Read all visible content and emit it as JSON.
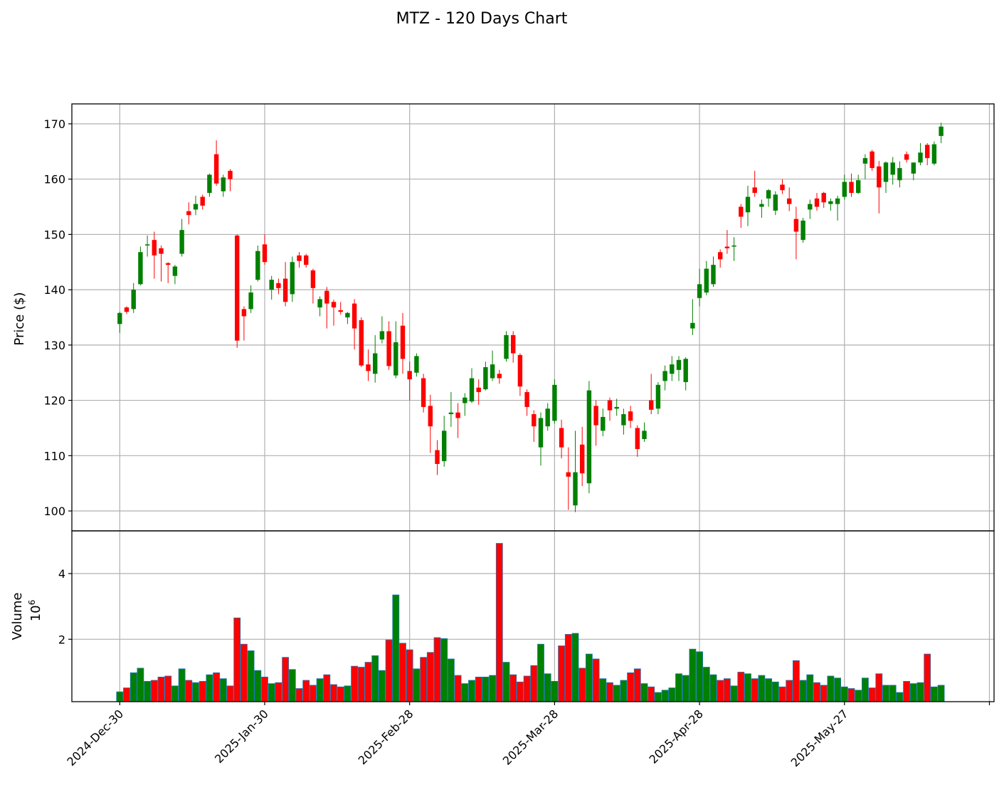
{
  "chart_data": {
    "type": "candlestick",
    "title": "MTZ - 120 Days Chart",
    "price_panel": {
      "ylabel": "Price ($)",
      "yticks": [
        100,
        110,
        120,
        130,
        140,
        150,
        160,
        170
      ],
      "ylim": [
        96.4,
        173.6
      ],
      "grid": true
    },
    "volume_panel": {
      "ylabel": "Volume",
      "scale_label": "10^6",
      "yticks": [
        2,
        4
      ],
      "ylim": [
        0.1,
        5.3
      ],
      "unit": "millions",
      "grid": true
    },
    "x_ticks": [
      {
        "index": 0,
        "label": "2024-Dec-30"
      },
      {
        "index": 21,
        "label": "2025-Jan-30"
      },
      {
        "index": 42,
        "label": "2025-Feb-28"
      },
      {
        "index": 63,
        "label": "2025-Mar-28"
      },
      {
        "index": 84,
        "label": "2025-Apr-28"
      },
      {
        "index": 105,
        "label": "2025-May-27"
      }
    ],
    "up_color": "#008000",
    "down_color": "#ff0000",
    "volume_edge_color": "#1f77b4",
    "candles": [
      [
        133.8,
        136.0,
        132.2,
        135.8,
        0.4
      ],
      [
        136.8,
        137.0,
        135.6,
        136.0,
        0.52
      ],
      [
        136.5,
        141.2,
        135.8,
        140.0,
        0.98
      ],
      [
        141.0,
        147.8,
        140.8,
        146.8,
        1.12
      ],
      [
        148.0,
        149.8,
        146.0,
        148.2,
        0.72
      ],
      [
        149.0,
        150.5,
        142.0,
        146.2,
        0.75
      ],
      [
        147.5,
        148.0,
        141.5,
        146.5,
        0.85
      ],
      [
        144.8,
        145.0,
        141.2,
        144.5,
        0.88
      ],
      [
        142.5,
        144.5,
        141.0,
        144.2,
        0.58
      ],
      [
        146.5,
        152.8,
        146.0,
        150.8,
        1.1
      ],
      [
        154.2,
        155.8,
        151.8,
        153.5,
        0.75
      ],
      [
        154.5,
        157.0,
        153.5,
        155.5,
        0.68
      ],
      [
        156.8,
        157.2,
        154.5,
        155.2,
        0.72
      ],
      [
        157.5,
        161.0,
        156.8,
        160.8,
        0.92
      ],
      [
        164.5,
        167.0,
        158.8,
        159.2,
        0.98
      ],
      [
        157.8,
        160.8,
        156.8,
        160.3,
        0.8
      ],
      [
        161.5,
        161.8,
        157.8,
        160.0,
        0.58
      ],
      [
        149.8,
        150.0,
        129.5,
        130.8,
        2.65
      ],
      [
        136.5,
        137.0,
        130.8,
        135.2,
        1.85
      ],
      [
        136.5,
        140.8,
        135.8,
        139.5,
        1.65
      ],
      [
        141.8,
        148.0,
        141.5,
        147.0,
        1.05
      ],
      [
        148.2,
        150.0,
        144.5,
        145.0,
        0.85
      ],
      [
        140.0,
        142.5,
        138.2,
        141.8,
        0.65
      ],
      [
        141.2,
        142.0,
        139.2,
        140.3,
        0.68
      ],
      [
        142.0,
        145.0,
        137.0,
        137.8,
        1.45
      ],
      [
        139.2,
        146.0,
        137.8,
        145.0,
        1.08
      ],
      [
        146.2,
        146.8,
        144.0,
        145.2,
        0.5
      ],
      [
        146.2,
        146.5,
        144.0,
        144.5,
        0.75
      ],
      [
        143.5,
        143.8,
        137.5,
        140.3,
        0.6
      ],
      [
        136.8,
        138.8,
        135.2,
        138.3,
        0.8
      ],
      [
        139.8,
        140.5,
        133.0,
        137.5,
        0.92
      ],
      [
        137.8,
        138.2,
        133.5,
        136.8,
        0.62
      ],
      [
        136.3,
        137.8,
        135.5,
        136.0,
        0.55
      ],
      [
        135.0,
        136.0,
        133.8,
        135.8,
        0.58
      ],
      [
        137.5,
        138.3,
        129.2,
        133.0,
        1.18
      ],
      [
        134.5,
        135.0,
        126.0,
        126.3,
        1.15
      ],
      [
        126.5,
        129.2,
        123.5,
        125.3,
        1.3
      ],
      [
        124.8,
        131.8,
        123.2,
        128.5,
        1.5
      ],
      [
        131.0,
        135.2,
        130.3,
        132.5,
        1.05
      ],
      [
        132.5,
        134.3,
        125.5,
        126.2,
        1.98
      ],
      [
        124.5,
        134.3,
        124.0,
        130.5,
        3.35
      ],
      [
        133.5,
        135.8,
        124.8,
        127.5,
        1.88
      ],
      [
        125.3,
        127.0,
        120.0,
        123.8,
        1.68
      ],
      [
        125.0,
        128.5,
        124.3,
        128.0,
        1.1
      ],
      [
        124.0,
        124.8,
        117.8,
        118.8,
        1.45
      ],
      [
        119.0,
        121.0,
        110.5,
        115.3,
        1.6
      ],
      [
        111.0,
        112.8,
        106.5,
        108.5,
        2.05
      ],
      [
        109.0,
        117.2,
        108.0,
        114.5,
        2.02
      ],
      [
        117.5,
        121.5,
        115.2,
        117.8,
        1.4
      ],
      [
        117.8,
        119.5,
        113.2,
        116.8,
        0.9
      ],
      [
        119.5,
        121.3,
        117.2,
        120.5,
        0.65
      ],
      [
        119.8,
        125.8,
        119.5,
        124.0,
        0.75
      ],
      [
        122.3,
        123.8,
        119.2,
        121.5,
        0.85
      ],
      [
        122.0,
        127.0,
        121.8,
        126.0,
        0.85
      ],
      [
        124.0,
        129.0,
        123.5,
        126.5,
        0.9
      ],
      [
        124.8,
        125.5,
        123.0,
        124.0,
        4.92
      ],
      [
        127.5,
        132.5,
        127.0,
        131.8,
        1.3
      ],
      [
        131.8,
        132.5,
        126.8,
        128.5,
        0.92
      ],
      [
        128.2,
        128.5,
        120.8,
        122.5,
        0.7
      ],
      [
        121.5,
        122.0,
        117.2,
        118.8,
        0.88
      ],
      [
        117.5,
        118.2,
        112.5,
        115.3,
        1.2
      ],
      [
        111.5,
        117.8,
        108.2,
        116.8,
        1.85
      ],
      [
        115.3,
        119.5,
        114.5,
        118.5,
        0.95
      ],
      [
        116.3,
        123.8,
        115.8,
        122.8,
        0.72
      ],
      [
        115.0,
        116.5,
        109.5,
        111.5,
        1.8
      ],
      [
        107.0,
        111.5,
        100.2,
        106.2,
        2.15
      ],
      [
        101.0,
        114.5,
        99.8,
        107.0,
        2.18
      ],
      [
        112.0,
        115.2,
        104.5,
        106.8,
        1.12
      ],
      [
        105.0,
        123.5,
        103.2,
        121.8,
        1.55
      ],
      [
        119.0,
        120.0,
        111.8,
        115.5,
        1.4
      ],
      [
        114.5,
        118.5,
        113.5,
        117.0,
        0.8
      ],
      [
        120.0,
        120.5,
        116.3,
        118.2,
        0.68
      ],
      [
        118.5,
        120.3,
        117.2,
        118.8,
        0.6
      ],
      [
        115.5,
        118.5,
        113.8,
        117.5,
        0.75
      ],
      [
        118.0,
        119.0,
        115.0,
        116.3,
        0.98
      ],
      [
        115.0,
        115.5,
        109.8,
        111.2,
        1.1
      ],
      [
        113.0,
        116.0,
        112.5,
        114.5,
        0.65
      ],
      [
        120.0,
        124.8,
        117.5,
        118.3,
        0.55
      ],
      [
        118.5,
        123.3,
        117.5,
        122.8,
        0.38
      ],
      [
        123.5,
        126.3,
        121.8,
        125.3,
        0.45
      ],
      [
        124.8,
        128.0,
        123.5,
        126.5,
        0.52
      ],
      [
        125.5,
        128.0,
        123.5,
        127.3,
        0.95
      ],
      [
        123.3,
        127.8,
        121.8,
        127.5,
        0.9
      ],
      [
        133.0,
        138.3,
        131.8,
        134.0,
        1.7
      ],
      [
        138.5,
        143.8,
        137.0,
        141.0,
        1.62
      ],
      [
        139.5,
        145.2,
        139.0,
        143.8,
        1.15
      ],
      [
        141.0,
        146.0,
        140.5,
        144.5,
        0.92
      ],
      [
        146.8,
        147.3,
        144.0,
        145.5,
        0.75
      ],
      [
        147.8,
        150.8,
        146.5,
        147.5,
        0.8
      ],
      [
        147.8,
        149.5,
        145.2,
        148.0,
        0.58
      ],
      [
        155.0,
        155.5,
        151.2,
        153.2,
        1.0
      ],
      [
        154.0,
        158.8,
        151.5,
        156.8,
        0.95
      ],
      [
        158.5,
        161.5,
        156.8,
        157.5,
        0.8
      ],
      [
        155.0,
        156.3,
        153.0,
        155.5,
        0.9
      ],
      [
        156.5,
        158.2,
        155.0,
        158.0,
        0.8
      ],
      [
        154.3,
        157.8,
        153.5,
        157.2,
        0.7
      ],
      [
        159.0,
        160.0,
        157.3,
        158.0,
        0.55
      ],
      [
        156.5,
        158.5,
        154.2,
        155.5,
        0.75
      ],
      [
        152.8,
        155.0,
        145.5,
        150.5,
        1.35
      ],
      [
        149.0,
        153.0,
        148.5,
        152.5,
        0.75
      ],
      [
        154.5,
        156.3,
        152.8,
        155.5,
        0.92
      ],
      [
        156.5,
        157.5,
        154.3,
        155.0,
        0.68
      ],
      [
        157.5,
        157.7,
        154.8,
        155.8,
        0.6
      ],
      [
        155.5,
        156.5,
        154.3,
        156.0,
        0.88
      ],
      [
        155.5,
        157.0,
        152.5,
        156.5,
        0.82
      ],
      [
        156.8,
        160.8,
        156.3,
        159.5,
        0.55
      ],
      [
        159.5,
        161.0,
        156.8,
        157.5,
        0.5
      ],
      [
        157.5,
        160.8,
        157.3,
        159.8,
        0.45
      ],
      [
        162.8,
        164.5,
        160.0,
        163.8,
        0.82
      ],
      [
        165.0,
        165.3,
        161.5,
        162.0,
        0.52
      ],
      [
        162.3,
        163.3,
        153.8,
        158.5,
        0.95
      ],
      [
        159.5,
        163.2,
        157.5,
        163.0,
        0.6
      ],
      [
        160.8,
        164.0,
        159.0,
        163.0,
        0.6
      ],
      [
        159.8,
        163.2,
        158.5,
        162.0,
        0.38
      ],
      [
        164.5,
        165.0,
        163.0,
        163.5,
        0.72
      ],
      [
        161.0,
        163.0,
        159.8,
        163.0,
        0.65
      ],
      [
        163.0,
        166.5,
        162.5,
        164.8,
        0.68
      ],
      [
        166.2,
        166.5,
        162.5,
        163.8,
        1.55
      ],
      [
        162.8,
        166.8,
        162.5,
        166.3,
        0.55
      ],
      [
        167.8,
        170.2,
        166.5,
        169.5,
        0.6
      ]
    ]
  }
}
